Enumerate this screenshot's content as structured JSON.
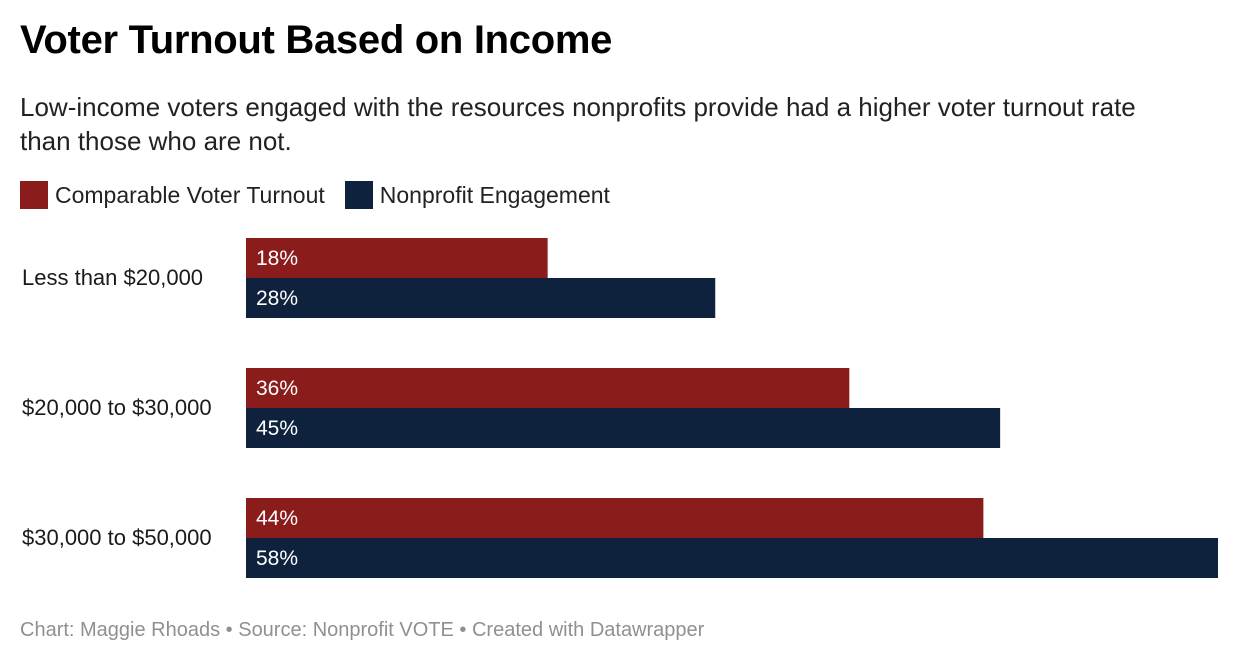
{
  "title": "Voter Turnout Based on Income",
  "subtitle": "Low-income voters engaged with the resources nonprofits provide had a higher voter turnout rate than those who are not.",
  "footer": "Chart: Maggie Rhoads • Source: Nonprofit VOTE • Created with Datawrapper",
  "chart_data": {
    "type": "bar",
    "orientation": "horizontal",
    "title": "Voter Turnout Based on Income",
    "subtitle": "Low-income voters engaged with the resources nonprofits provide had a higher voter turnout rate than those who are not.",
    "categories": [
      "Less than $20,000",
      "$20,000 to $30,000",
      "$30,000 to $50,000"
    ],
    "series": [
      {
        "name": "Comparable Voter Turnout",
        "color": "#8b1c1c",
        "values": [
          18,
          36,
          44
        ],
        "labels": [
          "18%",
          "36%",
          "44%"
        ]
      },
      {
        "name": "Nonprofit Engagement",
        "color": "#0f223d",
        "values": [
          28,
          45,
          58
        ],
        "labels": [
          "28%",
          "45%",
          "58%"
        ]
      }
    ],
    "unit": "%",
    "xlim": [
      0,
      58
    ],
    "grid": false,
    "legend": "top-left"
  }
}
